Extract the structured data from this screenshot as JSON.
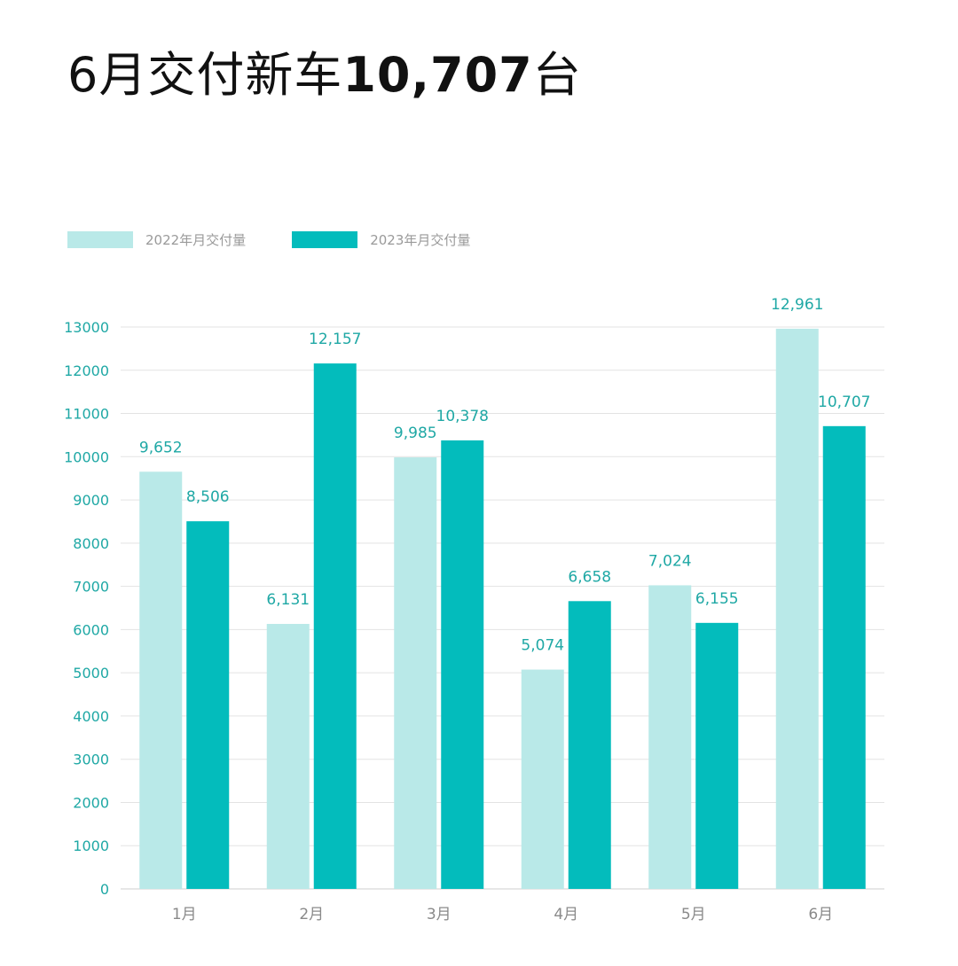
{
  "title": {
    "prefix": "6月交付新车",
    "highlight": "10,707",
    "suffix": "台"
  },
  "colors": {
    "series_2022": "#b9e9e8",
    "series_2023": "#03bcbc",
    "grid": "#e3e3e3",
    "tick": "#1fa8a5"
  },
  "chart_data": {
    "type": "bar",
    "categories": [
      "1月",
      "2月",
      "3月",
      "4月",
      "5月",
      "6月"
    ],
    "series": [
      {
        "name": "2022年月交付量",
        "values": [
          9652,
          6131,
          9985,
          5074,
          7024,
          12961
        ],
        "labels": [
          "9,652",
          "6,131",
          "9,985",
          "5,074",
          "7,024",
          "12,961"
        ]
      },
      {
        "name": "2023年月交付量",
        "values": [
          8506,
          12157,
          10378,
          6658,
          6155,
          10707
        ],
        "labels": [
          "8,506",
          "12,157",
          "10,378",
          "6,658",
          "6,155",
          "10,707"
        ]
      }
    ],
    "yticks": [
      "0",
      "1000",
      "2000",
      "3000",
      "4000",
      "5000",
      "6000",
      "7000",
      "8000",
      "9000",
      "10000",
      "11000",
      "12000",
      "13000"
    ],
    "ylim": [
      0,
      13000
    ],
    "grid": true,
    "legend_position": "top-left"
  }
}
